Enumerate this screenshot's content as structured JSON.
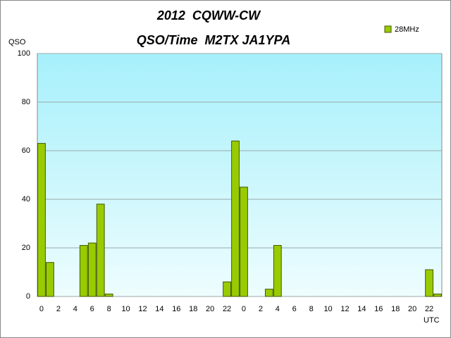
{
  "chart_data": {
    "type": "bar",
    "title": "2012  CQWW-CW",
    "subtitle": "QSO/Time  M2TX JA1YPA",
    "y_label": "QSO",
    "x_label": "UTC",
    "categories": [
      "0",
      null,
      "2",
      null,
      "4",
      null,
      "6",
      null,
      "8",
      null,
      "10",
      null,
      "12",
      null,
      "14",
      null,
      "16",
      null,
      "18",
      null,
      "20",
      null,
      "22",
      null,
      "0",
      null,
      "2",
      null,
      "4",
      null,
      "6",
      null,
      "8",
      null,
      "10",
      null,
      "12",
      null,
      "14",
      null,
      "16",
      null,
      "18",
      null,
      "20",
      null,
      "22",
      null
    ],
    "series": [
      {
        "name": "28MHz",
        "color": "#99cc00",
        "values": [
          63,
          14,
          0,
          0,
          0,
          21,
          22,
          38,
          1,
          0,
          0,
          0,
          0,
          0,
          0,
          0,
          0,
          0,
          0,
          0,
          0,
          0,
          6,
          64,
          45,
          0,
          0,
          3,
          21,
          0,
          0,
          0,
          0,
          0,
          0,
          0,
          0,
          0,
          0,
          0,
          0,
          0,
          0,
          0,
          0,
          0,
          11,
          1
        ]
      }
    ],
    "ylim": [
      0,
      100
    ],
    "yticks": [
      0,
      20,
      40,
      60,
      80,
      100
    ],
    "grid": true,
    "legend": "top-right"
  }
}
